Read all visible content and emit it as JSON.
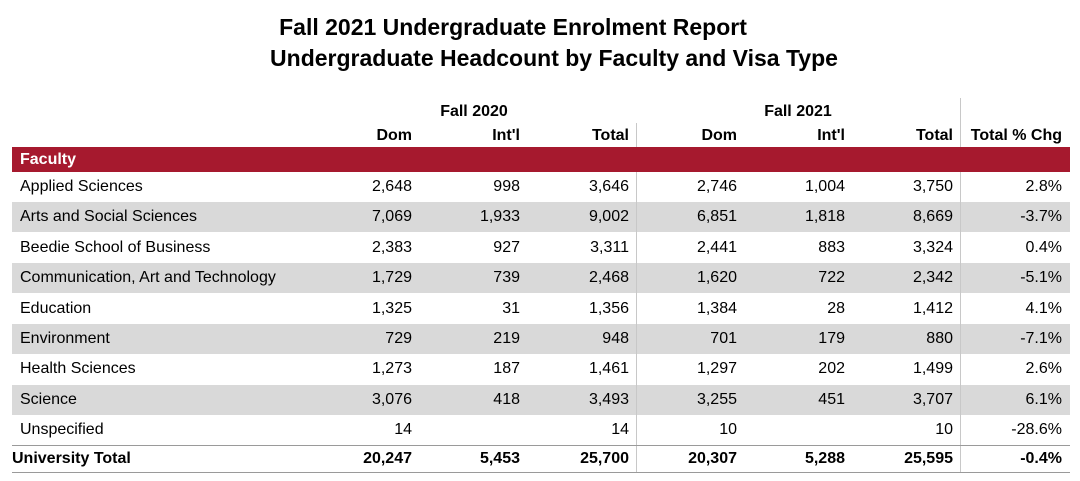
{
  "title": "Fall 2021 Undergraduate Enrolment Report",
  "subtitle": "Undergraduate Headcount by Faculty and Visa Type",
  "groups": {
    "fall2020": "Fall 2020",
    "fall2021": "Fall 2021"
  },
  "columns": [
    "Dom",
    "Int'l",
    "Total",
    "Dom",
    "Int'l",
    "Total",
    "Total % Chg"
  ],
  "section_label": "Faculty",
  "rows": [
    {
      "faculty": "Applied Sciences",
      "dom2020": "2,648",
      "intl2020": "998",
      "total2020": "3,646",
      "dom2021": "2,746",
      "intl2021": "1,004",
      "total2021": "3,750",
      "chg": "2.8%"
    },
    {
      "faculty": "Arts and Social Sciences",
      "dom2020": "7,069",
      "intl2020": "1,933",
      "total2020": "9,002",
      "dom2021": "6,851",
      "intl2021": "1,818",
      "total2021": "8,669",
      "chg": "-3.7%"
    },
    {
      "faculty": "Beedie School of Business",
      "dom2020": "2,383",
      "intl2020": "927",
      "total2020": "3,311",
      "dom2021": "2,441",
      "intl2021": "883",
      "total2021": "3,324",
      "chg": "0.4%"
    },
    {
      "faculty": "Communication, Art and Technology",
      "dom2020": "1,729",
      "intl2020": "739",
      "total2020": "2,468",
      "dom2021": "1,620",
      "intl2021": "722",
      "total2021": "2,342",
      "chg": "-5.1%"
    },
    {
      "faculty": "Education",
      "dom2020": "1,325",
      "intl2020": "31",
      "total2020": "1,356",
      "dom2021": "1,384",
      "intl2021": "28",
      "total2021": "1,412",
      "chg": "4.1%"
    },
    {
      "faculty": "Environment",
      "dom2020": "729",
      "intl2020": "219",
      "total2020": "948",
      "dom2021": "701",
      "intl2021": "179",
      "total2021": "880",
      "chg": "-7.1%"
    },
    {
      "faculty": "Health Sciences",
      "dom2020": "1,273",
      "intl2020": "187",
      "total2020": "1,461",
      "dom2021": "1,297",
      "intl2021": "202",
      "total2021": "1,499",
      "chg": "2.6%"
    },
    {
      "faculty": "Science",
      "dom2020": "3,076",
      "intl2020": "418",
      "total2020": "3,493",
      "dom2021": "3,255",
      "intl2021": "451",
      "total2021": "3,707",
      "chg": "6.1%"
    },
    {
      "faculty": "Unspecified",
      "dom2020": "14",
      "intl2020": "",
      "total2020": "14",
      "dom2021": "10",
      "intl2021": "",
      "total2021": "10",
      "chg": "-28.6%"
    }
  ],
  "total": {
    "faculty": "University Total",
    "dom2020": "20,247",
    "intl2020": "5,453",
    "total2020": "25,700",
    "dom2021": "20,307",
    "intl2021": "5,288",
    "total2021": "25,595",
    "chg": "-0.4%"
  },
  "colors": {
    "accent": "#a6192e",
    "row_shade": "#d9d9d9"
  }
}
